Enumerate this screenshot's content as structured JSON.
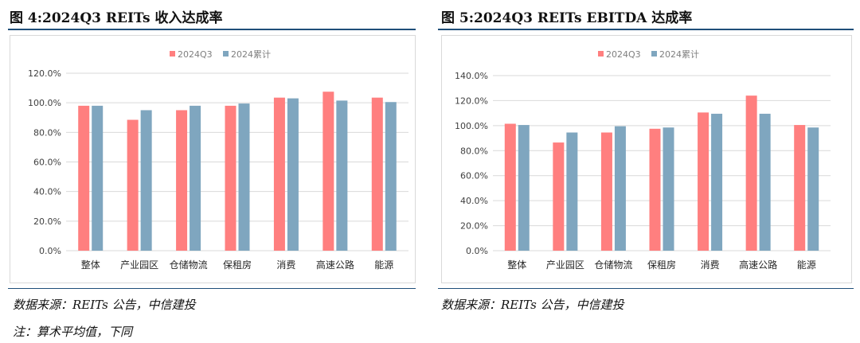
{
  "panels": [
    {
      "title": "图 4:2024Q3 REITs 收入达成率",
      "source": "数据来源：REITs 公告，中信建投",
      "note": "注：算术平均值，下同"
    },
    {
      "title": "图 5:2024Q3 REITs EBITDA 达成率",
      "source": "数据来源：REITs 公告，中信建投"
    }
  ],
  "colors": {
    "series1": "#ff7f7f",
    "series2": "#7fa6bf",
    "grid": "#d9d9d9",
    "axis_text": "#404040"
  },
  "chart_data": [
    {
      "type": "bar",
      "categories": [
        "整体",
        "产业园区",
        "仓储物流",
        "保租房",
        "消费",
        "高速公路",
        "能源"
      ],
      "series": [
        {
          "name": "2024Q3",
          "values": [
            98,
            88.5,
            95,
            98,
            103.5,
            107.5,
            103.5
          ]
        },
        {
          "name": "2024累计",
          "values": [
            98,
            95,
            98,
            99.5,
            103,
            101.5,
            100.5
          ]
        }
      ],
      "ylim": [
        0,
        120
      ],
      "yticks": [
        0,
        20,
        40,
        60,
        80,
        100,
        120
      ],
      "ytick_labels": [
        "0.0%",
        "20.0%",
        "40.0%",
        "60.0%",
        "80.0%",
        "100.0%",
        "120.0%"
      ],
      "legend_position": "top-center",
      "grid": true
    },
    {
      "type": "bar",
      "categories": [
        "整体",
        "产业园区",
        "仓储物流",
        "保租房",
        "消费",
        "高速公路",
        "能源"
      ],
      "series": [
        {
          "name": "2024Q3",
          "values": [
            101.5,
            86.5,
            94.5,
            97.5,
            110.5,
            124,
            100.5
          ]
        },
        {
          "name": "2024累计",
          "values": [
            100.5,
            94.5,
            99.5,
            98.5,
            109.5,
            109.5,
            98.5
          ]
        }
      ],
      "ylim": [
        0,
        140
      ],
      "yticks": [
        0,
        20,
        40,
        60,
        80,
        100,
        120,
        140
      ],
      "ytick_labels": [
        "0.0%",
        "20.0%",
        "40.0%",
        "60.0%",
        "80.0%",
        "100.0%",
        "120.0%",
        "140.0%"
      ],
      "legend_position": "top-center",
      "grid": true
    }
  ]
}
